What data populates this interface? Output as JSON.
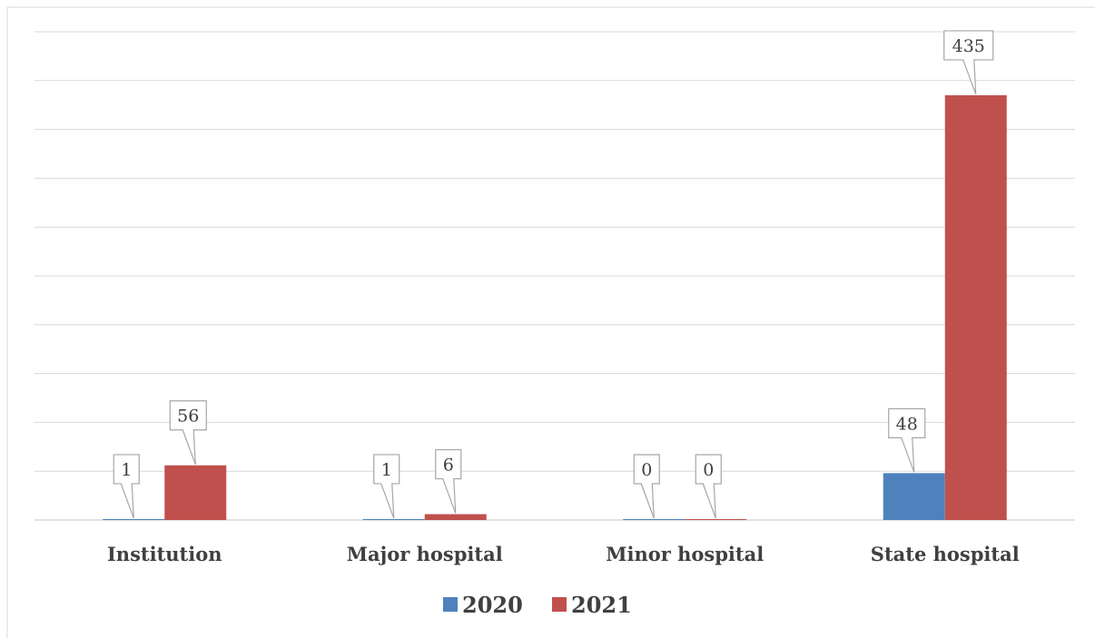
{
  "chart_data": {
    "type": "bar",
    "categories": [
      "Institution",
      "Major hospital",
      "Minor hospital",
      "State hospital"
    ],
    "series": [
      {
        "name": "2020",
        "color": "#4f81bd",
        "values": [
          1,
          1,
          0,
          48
        ]
      },
      {
        "name": "2021",
        "color": "#c0504d",
        "values": [
          56,
          6,
          0,
          435
        ]
      }
    ],
    "ylim": [
      0,
      500
    ],
    "grid": true,
    "legend": "bottom",
    "title": "",
    "xlabel": "",
    "ylabel": ""
  }
}
